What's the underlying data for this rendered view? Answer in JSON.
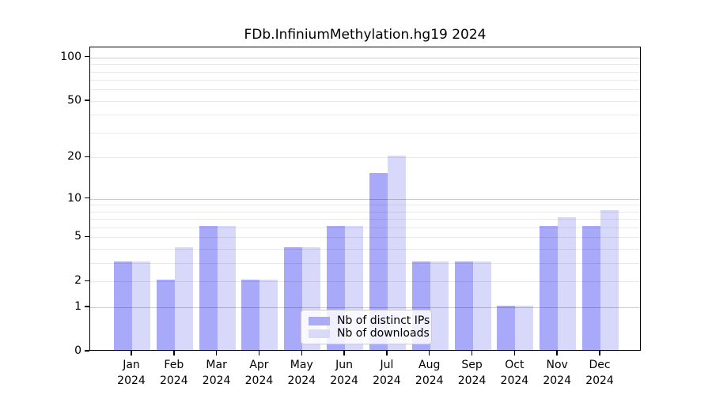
{
  "title": "FDb.InfiniumMethylation.hg19 2024",
  "chart_data": {
    "type": "bar",
    "title": "FDb.InfiniumMethylation.hg19 2024",
    "categories": [
      "Jan",
      "Feb",
      "Mar",
      "Apr",
      "May",
      "Jun",
      "Jul",
      "Aug",
      "Sep",
      "Oct",
      "Nov",
      "Dec"
    ],
    "year_label": "2024",
    "series": [
      {
        "name": "Nb of distinct IPs",
        "color": "#a9a9f7",
        "values": [
          3,
          2,
          6,
          2,
          4,
          6,
          15,
          3,
          3,
          1,
          6,
          6
        ]
      },
      {
        "name": "Nb of downloads",
        "color": "#d8d8f7",
        "values": [
          3,
          4,
          6,
          2,
          4,
          6,
          20,
          3,
          3,
          1,
          7,
          8
        ]
      }
    ],
    "xlabel": "",
    "ylabel": "",
    "yscale": "log1p",
    "ylim": [
      0,
      117
    ],
    "ytick_values": [
      0,
      1,
      2,
      5,
      10,
      20,
      50,
      100
    ],
    "ytick_labels": [
      "0",
      "1",
      "2",
      "5",
      "10",
      "20",
      "50",
      "100"
    ],
    "minor_grid_values": [
      2,
      3,
      4,
      5,
      6,
      7,
      8,
      9,
      20,
      30,
      40,
      50,
      60,
      70,
      80,
      90
    ],
    "major_grid_values": [
      1,
      10,
      100
    ],
    "grid": "horizontal",
    "legend_position": "inside-bottom-center"
  }
}
